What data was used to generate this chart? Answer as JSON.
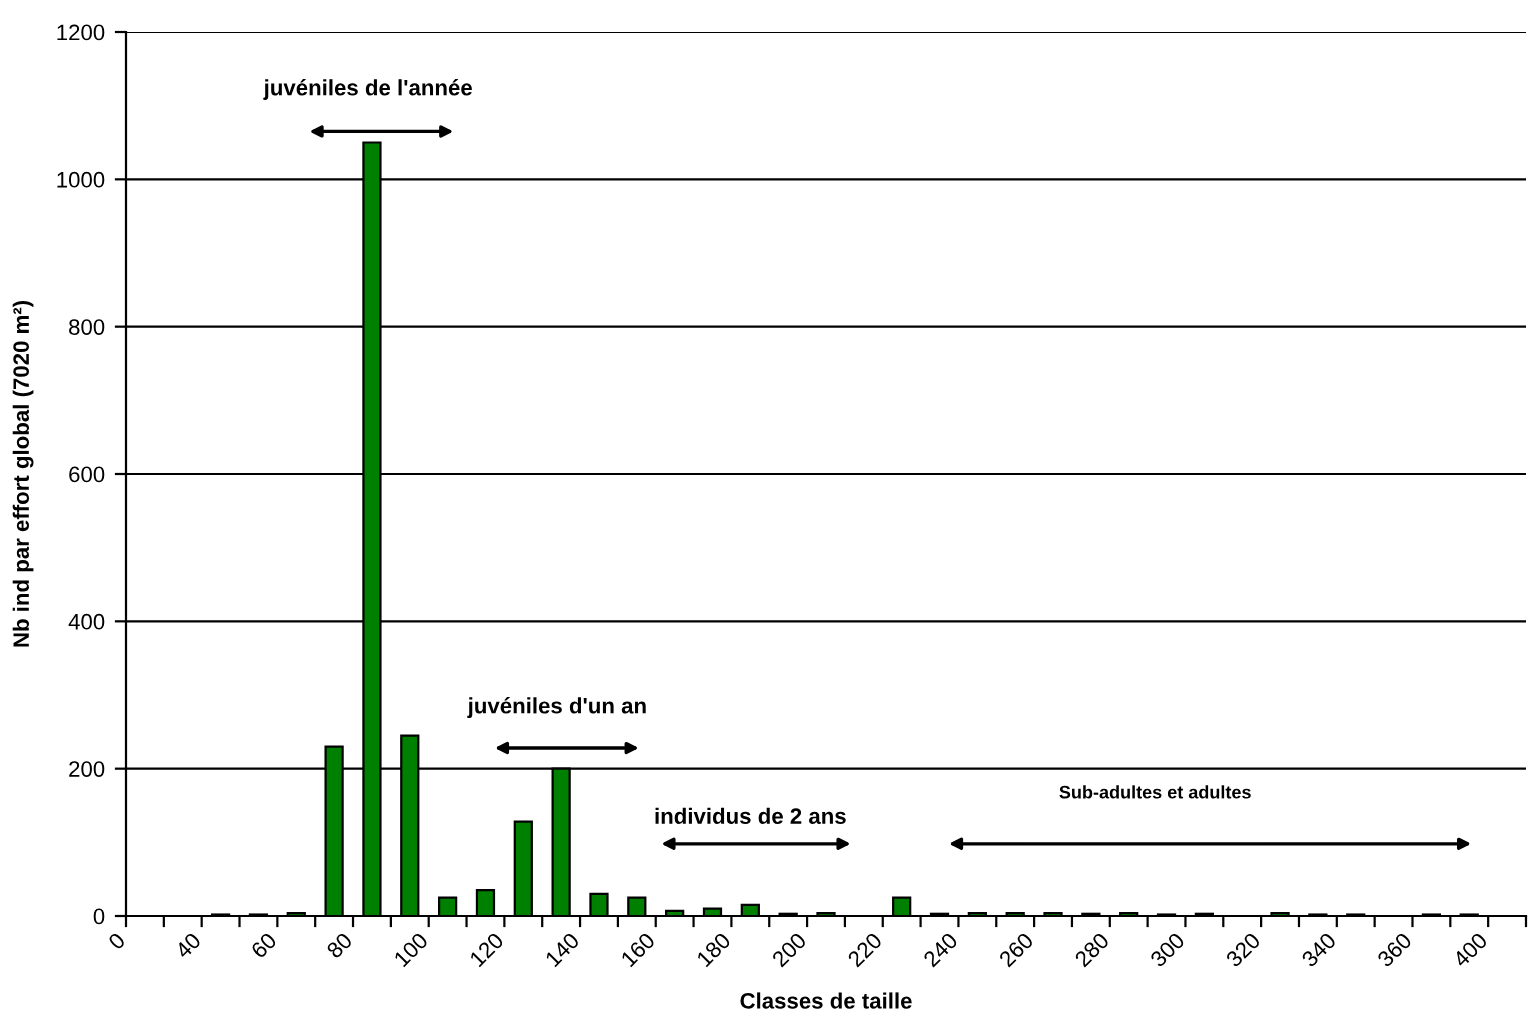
{
  "chart_data": {
    "type": "bar",
    "xlabel": "Classes de taille",
    "ylabel": "Nb ind par effort global (7020 m²)",
    "categories": [
      "0",
      null,
      "40",
      null,
      "60",
      null,
      "80",
      null,
      "100",
      null,
      "120",
      null,
      "140",
      null,
      "160",
      null,
      "180",
      null,
      "200",
      null,
      "220",
      null,
      "240",
      null,
      "260",
      null,
      "280",
      null,
      "300",
      null,
      "320",
      null,
      "340",
      null,
      "360",
      null,
      "400"
    ],
    "values": [
      0,
      0,
      2,
      2,
      4,
      230,
      1050,
      245,
      25,
      35,
      128,
      200,
      30,
      25,
      7,
      10,
      15,
      3,
      4,
      0,
      25,
      3,
      4,
      4,
      4,
      3,
      4,
      2,
      3,
      0,
      4,
      2,
      2,
      0,
      2,
      2,
      0
    ],
    "color": "#008000",
    "ylim": [
      0,
      1200
    ],
    "yticks": [
      0,
      200,
      400,
      600,
      800,
      1000,
      1200
    ],
    "grid": "y",
    "annotations": [
      "juvéniles de l'année",
      "juvéniles d'un an",
      "individus de 2 ans",
      "Sub-adultes et adultes"
    ]
  }
}
